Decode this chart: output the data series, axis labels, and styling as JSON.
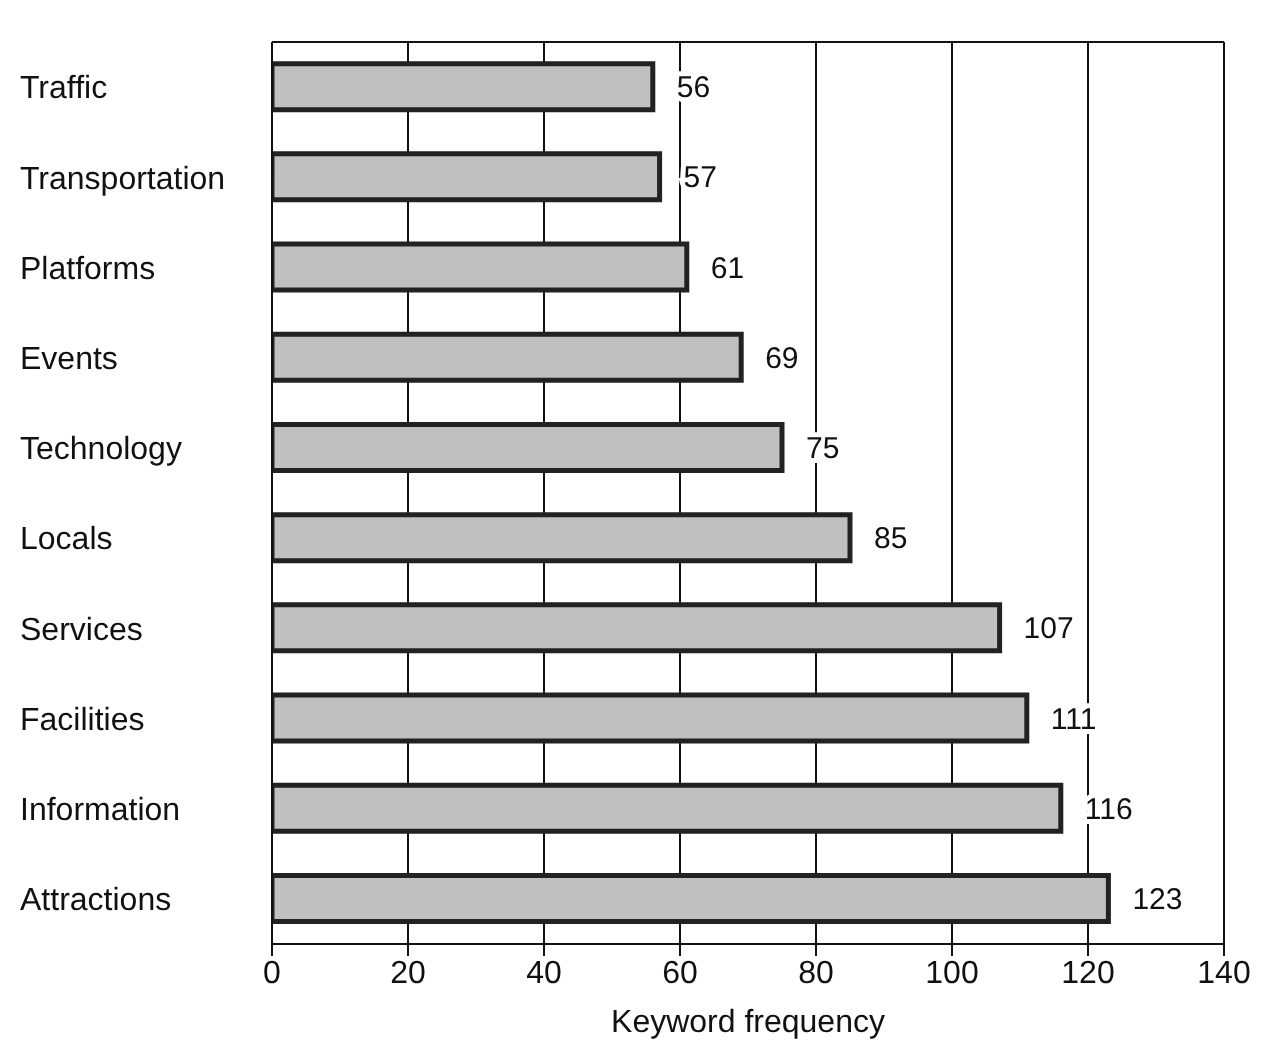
{
  "chart_data": {
    "type": "bar",
    "orientation": "horizontal",
    "xlabel": "Keyword frequency",
    "categories": [
      "Traffic",
      "Transportation",
      "Platforms",
      "Events",
      "Technology",
      "Locals",
      "Services",
      "Facilities",
      "Information",
      "Attractions"
    ],
    "values": [
      56,
      57,
      61,
      69,
      75,
      85,
      107,
      111,
      116,
      123
    ],
    "color": "#c0c0c0",
    "xlim": [
      0,
      140
    ],
    "xticks": [
      0,
      20,
      40,
      60,
      80,
      100,
      120,
      140
    ],
    "grid": "x",
    "data_labels": true
  }
}
